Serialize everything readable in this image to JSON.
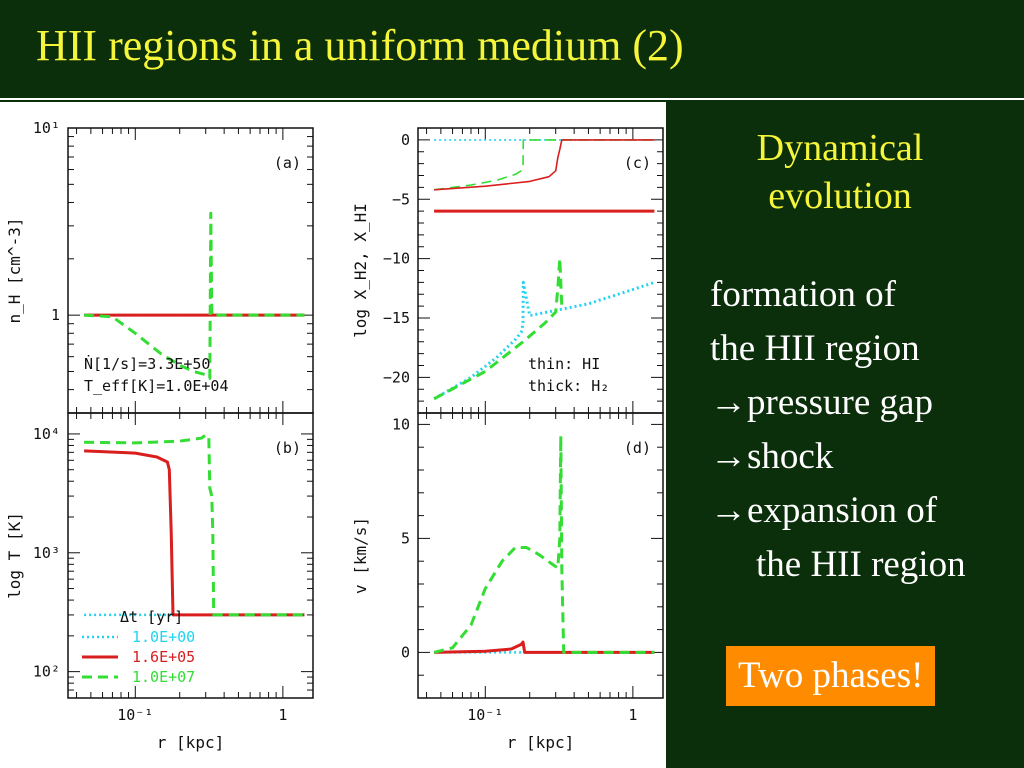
{
  "slide": {
    "title": "HII regions in a uniform medium (2)",
    "heading": [
      "Dynamical",
      "evolution"
    ],
    "bullets": [
      "formation of",
      "the HII region",
      "→pressure gap",
      "→shock",
      "→expansion of",
      "the HII region"
    ],
    "callout": "Two phases!"
  },
  "colors": {
    "background": "#0b2e0b",
    "title": "#f5f53a",
    "callout_bg": "#ff8c00",
    "series_0": "#22d3f0",
    "series_1": "#d91e1e",
    "series_2": "#33dd33"
  },
  "chart_data": [
    {
      "type": "line",
      "id": "a",
      "panel_label": "(a)",
      "ylabel": "n_H [cm^-3]",
      "yscale": "log",
      "xscale": "log",
      "xlim": [
        0.035,
        1.6
      ],
      "ylim": [
        0.3,
        10
      ],
      "yticks": [
        {
          "v": 1,
          "label": "1"
        },
        {
          "v": 10,
          "label": "10¹"
        }
      ],
      "annotations": [
        "Ṅ[1/s]=3.3E+50",
        "T_eff[K]=1.0E+04"
      ],
      "series": [
        {
          "x": [
            0.045,
            1.4
          ],
          "y": [
            1,
            1
          ]
        },
        {
          "x": [
            0.045,
            1.4
          ],
          "y": [
            1,
            1
          ]
        },
        {
          "x": [
            0.045,
            0.07,
            0.1,
            0.15,
            0.2,
            0.25,
            0.3,
            0.32,
            0.325,
            0.33,
            0.34,
            1.4
          ],
          "y": [
            1,
            0.98,
            0.8,
            0.62,
            0.54,
            0.5,
            0.48,
            0.46,
            3.5,
            1,
            1,
            1
          ]
        }
      ]
    },
    {
      "type": "line",
      "id": "c",
      "panel_label": "(c)",
      "ylabel": "log X_H2, X_HI",
      "xscale": "log",
      "xlim": [
        0.035,
        1.6
      ],
      "ylim": [
        -23,
        1
      ],
      "yticks": [
        {
          "v": 0,
          "label": "0"
        },
        {
          "v": -5,
          "label": "−5"
        },
        {
          "v": -10,
          "label": "−10"
        },
        {
          "v": -15,
          "label": "−15"
        },
        {
          "v": -20,
          "label": "−20"
        }
      ],
      "annotations": [
        "thin: HI",
        "thick: H₂"
      ],
      "series": [
        {
          "group": "HI",
          "x": [
            0.045,
            1.4
          ],
          "y": [
            0,
            0
          ]
        },
        {
          "group": "H2",
          "x": [
            0.045,
            1.4
          ],
          "y": [
            -6,
            -6
          ]
        },
        {
          "group": "HI",
          "x": [
            0.045,
            0.08,
            0.12,
            0.16,
            0.175,
            0.18,
            0.181,
            1.4
          ],
          "y": [
            -4.2,
            -3.8,
            -3.4,
            -2.9,
            -2.6,
            -2.4,
            0,
            0
          ]
        },
        {
          "group": "H2",
          "x": [
            0.045,
            0.08,
            0.12,
            0.16,
            0.175,
            0.18,
            0.181,
            0.2,
            0.5,
            1,
            1.4
          ],
          "y": [
            -21.8,
            -20,
            -18.3,
            -16.8,
            -16.2,
            -15.5,
            -12,
            -14.8,
            -13.8,
            -12.6,
            -12
          ]
        },
        {
          "group": "HI",
          "x": [
            0.045,
            0.1,
            0.2,
            0.27,
            0.3,
            0.31,
            0.32,
            0.33,
            1.4
          ],
          "y": [
            -4.2,
            -3.9,
            -3.5,
            -3.1,
            -2.6,
            -1.5,
            -0.8,
            0,
            0
          ]
        },
        {
          "group": "H2",
          "x": [
            0.045,
            0.1,
            0.18,
            0.25,
            0.3,
            0.31,
            0.32,
            0.33
          ],
          "y": [
            -21.8,
            -19.5,
            -17,
            -15.5,
            -14.5,
            -12.5,
            -10,
            -14
          ]
        }
      ]
    },
    {
      "type": "line",
      "id": "b",
      "panel_label": "(b)",
      "ylabel": "log T [K]",
      "yscale": "log",
      "xscale": "log",
      "xlim": [
        0.035,
        1.6
      ],
      "ylim": [
        60,
        15000
      ],
      "yticks": [
        {
          "v": 100,
          "label": "10²"
        },
        {
          "v": 1000,
          "label": "10³"
        },
        {
          "v": 10000,
          "label": "10⁴"
        }
      ],
      "xticks": [
        {
          "v": 0.1,
          "label": "10⁻¹"
        },
        {
          "v": 1,
          "label": "1"
        }
      ],
      "xlabel": "r [kpc]",
      "legend": {
        "title": "Δt [yr]",
        "entries": [
          "1.0E+00",
          "1.6E+05",
          "1.0E+07"
        ]
      },
      "series": [
        {
          "x": [
            0.045,
            1.4
          ],
          "y": [
            300,
            300
          ]
        },
        {
          "x": [
            0.045,
            0.1,
            0.14,
            0.165,
            0.17,
            0.175,
            0.18,
            1.4
          ],
          "y": [
            7200,
            6900,
            6400,
            5800,
            5000,
            1500,
            300,
            300
          ]
        },
        {
          "x": [
            0.045,
            0.1,
            0.2,
            0.28,
            0.3,
            0.315,
            0.32,
            0.33,
            0.335,
            0.34,
            1.4
          ],
          "y": [
            8500,
            8400,
            8700,
            9200,
            9800,
            9500,
            3500,
            3000,
            1500,
            300,
            300
          ]
        }
      ]
    },
    {
      "type": "line",
      "id": "d",
      "panel_label": "(d)",
      "ylabel": "v [km/s]",
      "xscale": "log",
      "xlim": [
        0.035,
        1.6
      ],
      "ylim": [
        -2,
        10.5
      ],
      "yticks": [
        {
          "v": 0,
          "label": "0"
        },
        {
          "v": 5,
          "label": "5"
        },
        {
          "v": 10,
          "label": "10"
        }
      ],
      "xticks": [
        {
          "v": 0.1,
          "label": "10⁻¹"
        },
        {
          "v": 1,
          "label": "1"
        }
      ],
      "xlabel": "r [kpc]",
      "series": [
        {
          "x": [
            0.045,
            1.4
          ],
          "y": [
            0,
            0
          ]
        },
        {
          "x": [
            0.045,
            0.1,
            0.15,
            0.175,
            0.18,
            0.185,
            1.4
          ],
          "y": [
            0,
            0.05,
            0.15,
            0.35,
            0.45,
            0,
            0
          ]
        },
        {
          "x": [
            0.045,
            0.06,
            0.08,
            0.1,
            0.13,
            0.16,
            0.19,
            0.23,
            0.28,
            0.31,
            0.32,
            0.325,
            0.33,
            0.34,
            1.4
          ],
          "y": [
            0,
            0.2,
            1.2,
            2.8,
            4,
            4.6,
            4.6,
            4.3,
            3.9,
            3.7,
            5,
            9.5,
            3.7,
            0,
            0
          ]
        }
      ]
    }
  ]
}
